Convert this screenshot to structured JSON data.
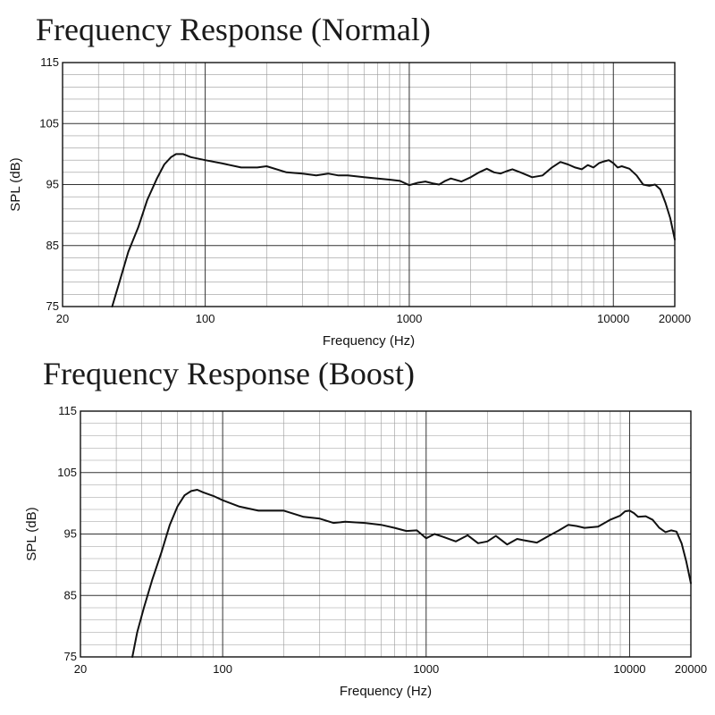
{
  "chart_data": [
    {
      "type": "line",
      "title": "Frequency Response (Normal)",
      "xlabel": "Frequency (Hz)",
      "ylabel": "SPL (dB)",
      "x_scale": "log",
      "xlim": [
        20,
        20000
      ],
      "ylim": [
        75,
        115
      ],
      "x_ticks": [
        20,
        100,
        1000,
        10000,
        20000
      ],
      "x_tick_labels": [
        "20",
        "100",
        "1000",
        "10000",
        "20000"
      ],
      "y_ticks": [
        75,
        85,
        95,
        105,
        115
      ],
      "y_tick_labels": [
        "75",
        "85",
        "95",
        "105",
        "115"
      ],
      "grid": true,
      "series": [
        {
          "x": [
            35,
            38,
            42,
            47,
            52,
            58,
            63,
            68,
            72,
            78,
            85,
            100,
            120,
            150,
            180,
            200,
            250,
            300,
            350,
            400,
            450,
            500,
            600,
            700,
            800,
            900,
            1000,
            1100,
            1200,
            1300,
            1400,
            1500,
            1600,
            1800,
            2000,
            2200,
            2400,
            2600,
            2800,
            3000,
            3200,
            3500,
            4000,
            4500,
            5000,
            5500,
            6000,
            6500,
            7000,
            7500,
            8000,
            8500,
            9000,
            9500,
            10000,
            10500,
            11000,
            12000,
            13000,
            14000,
            15000,
            16000,
            17000,
            18000,
            19000,
            20000
          ],
          "y": [
            75,
            79,
            84,
            88,
            92.5,
            96,
            98.3,
            99.5,
            100,
            100,
            99.5,
            99,
            98.5,
            97.8,
            97.8,
            98,
            97,
            96.8,
            96.5,
            96.8,
            96.5,
            96.5,
            96.2,
            96,
            95.8,
            95.6,
            94.9,
            95.3,
            95.5,
            95.2,
            95,
            95.6,
            96,
            95.5,
            96.2,
            97,
            97.6,
            97,
            96.8,
            97.2,
            97.5,
            97,
            96.2,
            96.5,
            97.8,
            98.7,
            98.3,
            97.8,
            97.5,
            98.2,
            97.8,
            98.5,
            98.8,
            99,
            98.5,
            97.8,
            98,
            97.6,
            96.5,
            95,
            94.8,
            95,
            94.2,
            92,
            89.5,
            86
          ]
        }
      ]
    },
    {
      "type": "line",
      "title": "Frequency Response (Boost)",
      "xlabel": "Frequency (Hz)",
      "ylabel": "SPL (dB)",
      "x_scale": "log",
      "xlim": [
        20,
        20000
      ],
      "ylim": [
        75,
        115
      ],
      "x_ticks": [
        20,
        100,
        1000,
        10000,
        20000
      ],
      "x_tick_labels": [
        "20",
        "100",
        "1000",
        "10000",
        "20000"
      ],
      "y_ticks": [
        75,
        85,
        95,
        105,
        115
      ],
      "y_tick_labels": [
        "75",
        "85",
        "95",
        "105",
        "115"
      ],
      "grid": true,
      "series": [
        {
          "x": [
            36,
            38,
            41,
            45,
            50,
            55,
            60,
            65,
            70,
            75,
            80,
            90,
            100,
            120,
            150,
            180,
            200,
            250,
            300,
            350,
            400,
            500,
            600,
            700,
            800,
            900,
            1000,
            1100,
            1200,
            1400,
            1600,
            1800,
            2000,
            2200,
            2500,
            2800,
            3000,
            3500,
            4000,
            4500,
            5000,
            5500,
            6000,
            7000,
            8000,
            9000,
            9500,
            10000,
            10500,
            11000,
            12000,
            13000,
            14000,
            15000,
            16000,
            17000,
            18000,
            19000,
            20000
          ],
          "y": [
            75,
            79,
            83,
            87.5,
            92,
            96.5,
            99.5,
            101.3,
            102,
            102.2,
            101.8,
            101.2,
            100.5,
            99.5,
            98.8,
            98.8,
            98.8,
            97.8,
            97.5,
            96.8,
            97,
            96.8,
            96.5,
            96,
            95.5,
            95.6,
            94.3,
            95,
            94.6,
            93.8,
            94.8,
            93.5,
            93.8,
            94.7,
            93.3,
            94.2,
            94,
            93.6,
            94.7,
            95.6,
            96.5,
            96.3,
            96,
            96.2,
            97.3,
            98,
            98.7,
            98.8,
            98.4,
            97.8,
            97.9,
            97.3,
            96,
            95.3,
            95.6,
            95.4,
            93.5,
            90.5,
            87
          ]
        }
      ]
    }
  ]
}
